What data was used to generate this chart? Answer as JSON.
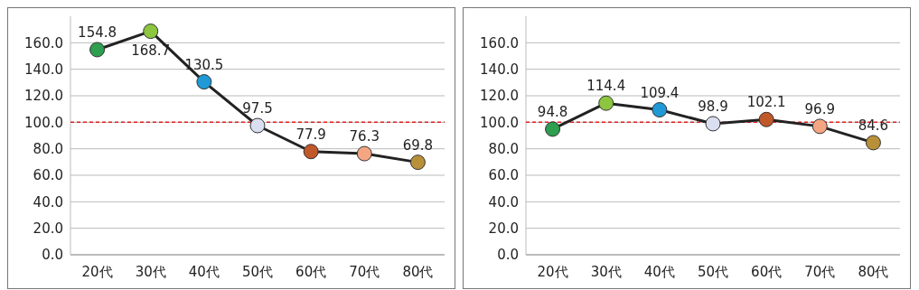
{
  "chart_data": [
    {
      "type": "line",
      "categories": [
        "20代",
        "30代",
        "40代",
        "50代",
        "60代",
        "70代",
        "80代"
      ],
      "series": [
        {
          "color": "#222222",
          "colors": [
            "#2e9e4f",
            "#8cc63f",
            "#1f9ad6",
            "#d9dff0",
            "#c0582a",
            "#f4a582",
            "#b8903a"
          ],
          "values": [
            154.8,
            168.7,
            130.5,
            97.5,
            77.9,
            76.3,
            69.8
          ]
        }
      ],
      "ylim": [
        0,
        180
      ],
      "yticks": [
        {
          "value": 0,
          "label": "0.0"
        },
        {
          "value": 20,
          "label": "20.0"
        },
        {
          "value": 40,
          "label": "40.0"
        },
        {
          "value": 60,
          "label": "60.0"
        },
        {
          "value": 80,
          "label": "80.0"
        },
        {
          "value": 100,
          "label": "100.0"
        },
        {
          "value": 120,
          "label": "120.0"
        },
        {
          "value": 140,
          "label": "140.0"
        },
        {
          "value": 160,
          "label": "160.0"
        }
      ],
      "grid": "y",
      "marker": "circle",
      "data_labels": true,
      "ref_lines": [
        {
          "axis": "y",
          "value": 100,
          "color": "#e02020",
          "line_style": "dashed"
        }
      ]
    },
    {
      "type": "line",
      "categories": [
        "20代",
        "30代",
        "40代",
        "50代",
        "60代",
        "70代",
        "80代"
      ],
      "series": [
        {
          "color": "#222222",
          "colors": [
            "#2e9e4f",
            "#8cc63f",
            "#1f9ad6",
            "#d9dff0",
            "#c0582a",
            "#f4a582",
            "#b8903a"
          ],
          "values": [
            94.8,
            114.4,
            109.4,
            98.9,
            102.1,
            96.9,
            84.6
          ]
        }
      ],
      "ylim": [
        0,
        180
      ],
      "yticks": [
        {
          "value": 0,
          "label": "0.0"
        },
        {
          "value": 20,
          "label": "20.0"
        },
        {
          "value": 40,
          "label": "40.0"
        },
        {
          "value": 60,
          "label": "60.0"
        },
        {
          "value": 80,
          "label": "80.0"
        },
        {
          "value": 100,
          "label": "100.0"
        },
        {
          "value": 120,
          "label": "120.0"
        },
        {
          "value": 140,
          "label": "140.0"
        },
        {
          "value": 160,
          "label": "160.0"
        }
      ],
      "grid": "y",
      "marker": "circle",
      "data_labels": true,
      "ref_lines": [
        {
          "axis": "y",
          "value": 100,
          "color": "#e02020",
          "line_style": "dashed"
        }
      ]
    }
  ]
}
